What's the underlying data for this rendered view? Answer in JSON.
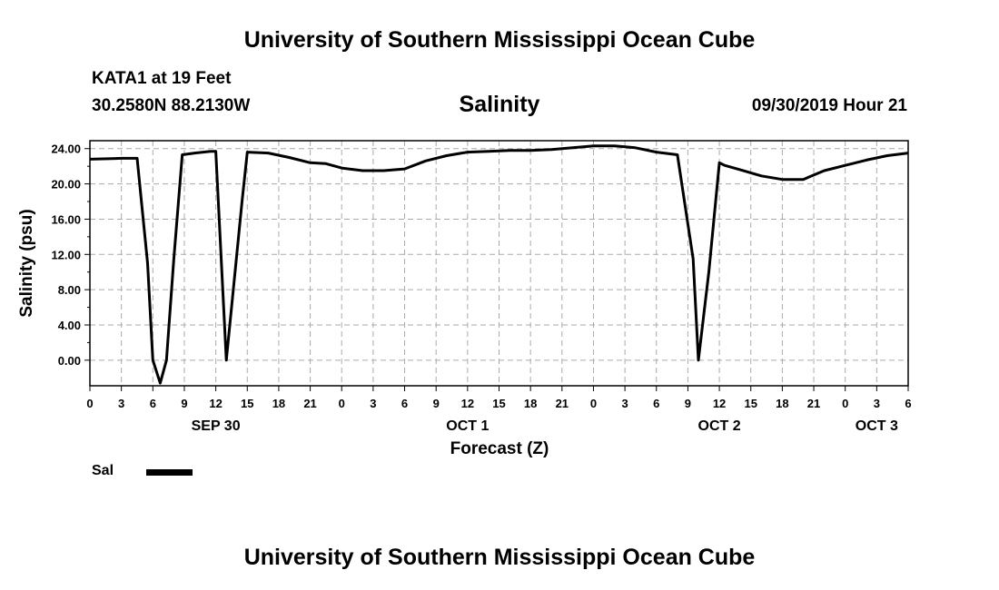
{
  "header": {
    "title": "University of Southern Mississippi Ocean Cube",
    "station": "KATA1 at 19 Feet",
    "coords": "30.2580N 88.2130W",
    "valid_time": "09/30/2019 Hour 21"
  },
  "footer": {
    "title": "University of Southern Mississippi Ocean Cube"
  },
  "legend": {
    "label": "Sal",
    "color": "#000000"
  },
  "chart_data": {
    "type": "line",
    "title": "Salinity",
    "xlabel": "Forecast (Z)",
    "ylabel": "Salinity (psu)",
    "ylim": [
      -2.9,
      24.9
    ],
    "xlim": [
      0,
      78
    ],
    "x_unit": "hours from 00Z SEP 30",
    "y_ticks": [
      "0.00",
      "4.00",
      "8.00",
      "12.00",
      "16.00",
      "20.00",
      "24.00"
    ],
    "x_ticks": [
      "0",
      "3",
      "6",
      "9",
      "12",
      "15",
      "18",
      "21",
      "0",
      "3",
      "6",
      "9",
      "12",
      "15",
      "18",
      "21",
      "0",
      "3",
      "6",
      "9",
      "12",
      "15",
      "18",
      "21",
      "0",
      "3",
      "6"
    ],
    "date_labels": [
      {
        "label": "SEP 30",
        "hour": 12
      },
      {
        "label": "OCT 1",
        "hour": 36
      },
      {
        "label": "OCT 2",
        "hour": 60
      },
      {
        "label": "OCT 3",
        "hour": 75
      }
    ],
    "grid": true,
    "legend_position": "bottom-left",
    "series": [
      {
        "name": "Sal",
        "color": "#000000",
        "x": [
          0,
          3,
          4.5,
          5.5,
          6,
          6.7,
          7.3,
          8,
          8.8,
          10,
          11.5,
          12,
          13,
          14.5,
          15,
          17,
          19,
          21,
          22.5,
          24,
          26,
          28,
          30,
          32,
          34,
          36,
          38,
          40,
          42,
          44,
          46,
          48,
          50,
          52,
          54,
          56,
          57.5,
          58,
          59,
          60,
          60.5,
          62,
          64,
          66,
          68,
          70,
          72,
          74,
          76,
          78
        ],
        "y": [
          22.8,
          22.9,
          22.9,
          11.0,
          0.0,
          -2.6,
          0.0,
          11.5,
          23.3,
          23.5,
          23.7,
          23.7,
          0.0,
          18.0,
          23.6,
          23.5,
          23.0,
          22.4,
          22.3,
          21.8,
          21.5,
          21.5,
          21.7,
          22.6,
          23.2,
          23.6,
          23.7,
          23.8,
          23.8,
          23.9,
          24.1,
          24.3,
          24.3,
          24.1,
          23.6,
          23.3,
          11.5,
          0.0,
          10.0,
          22.4,
          22.1,
          21.6,
          20.9,
          20.5,
          20.5,
          21.5,
          22.1,
          22.7,
          23.2,
          23.5
        ]
      }
    ]
  }
}
